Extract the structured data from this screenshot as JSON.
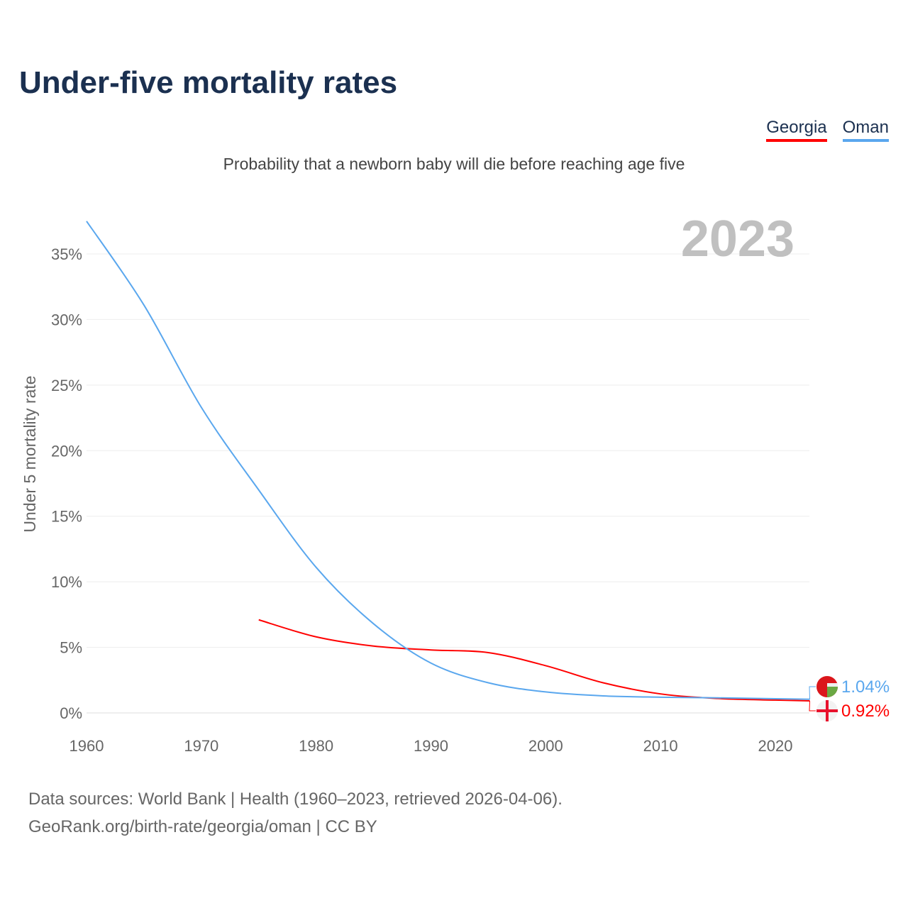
{
  "title": "Under-five mortality rates",
  "subtitle": "Probability that a newborn baby will die before reaching age five",
  "source_line1": "Data sources: World Bank | Health (1960–2023, retrieved 2026-04-06).",
  "source_line2": "GeoRank.org/birth-rate/georgia/oman | CC BY",
  "chart_data": {
    "type": "line",
    "title": "Under-five mortality rates",
    "ylabel": "Under 5 mortality rate",
    "xlabel": "",
    "year_label": "2023",
    "xlim": [
      1960,
      2023
    ],
    "ylim": [
      0,
      37.5
    ],
    "x_ticks": [
      1960,
      1970,
      1980,
      1990,
      2000,
      2010,
      2020
    ],
    "y_ticks": [
      0,
      5,
      10,
      15,
      20,
      25,
      30,
      35
    ],
    "y_tick_labels": [
      "0%",
      "5%",
      "10%",
      "15%",
      "20%",
      "25%",
      "30%",
      "35%"
    ],
    "grid": true,
    "legend": "top-right",
    "series": [
      {
        "name": "Georgia",
        "color": "#ff0000",
        "end_label": "0.92%",
        "x": [
          1975,
          1980,
          1985,
          1990,
          1995,
          2000,
          2005,
          2010,
          2015,
          2020,
          2023
        ],
        "values": [
          7.1,
          5.8,
          5.1,
          4.8,
          4.6,
          3.6,
          2.3,
          1.45,
          1.1,
          0.98,
          0.92
        ]
      },
      {
        "name": "Oman",
        "color": "#5aa7ee",
        "end_label": "1.04%",
        "x": [
          1960,
          1965,
          1970,
          1975,
          1980,
          1985,
          1990,
          1995,
          2000,
          2005,
          2010,
          2015,
          2020,
          2023
        ],
        "values": [
          37.5,
          31.1,
          23.3,
          17.0,
          11.1,
          6.8,
          3.8,
          2.3,
          1.6,
          1.3,
          1.2,
          1.15,
          1.08,
          1.04
        ]
      }
    ]
  }
}
